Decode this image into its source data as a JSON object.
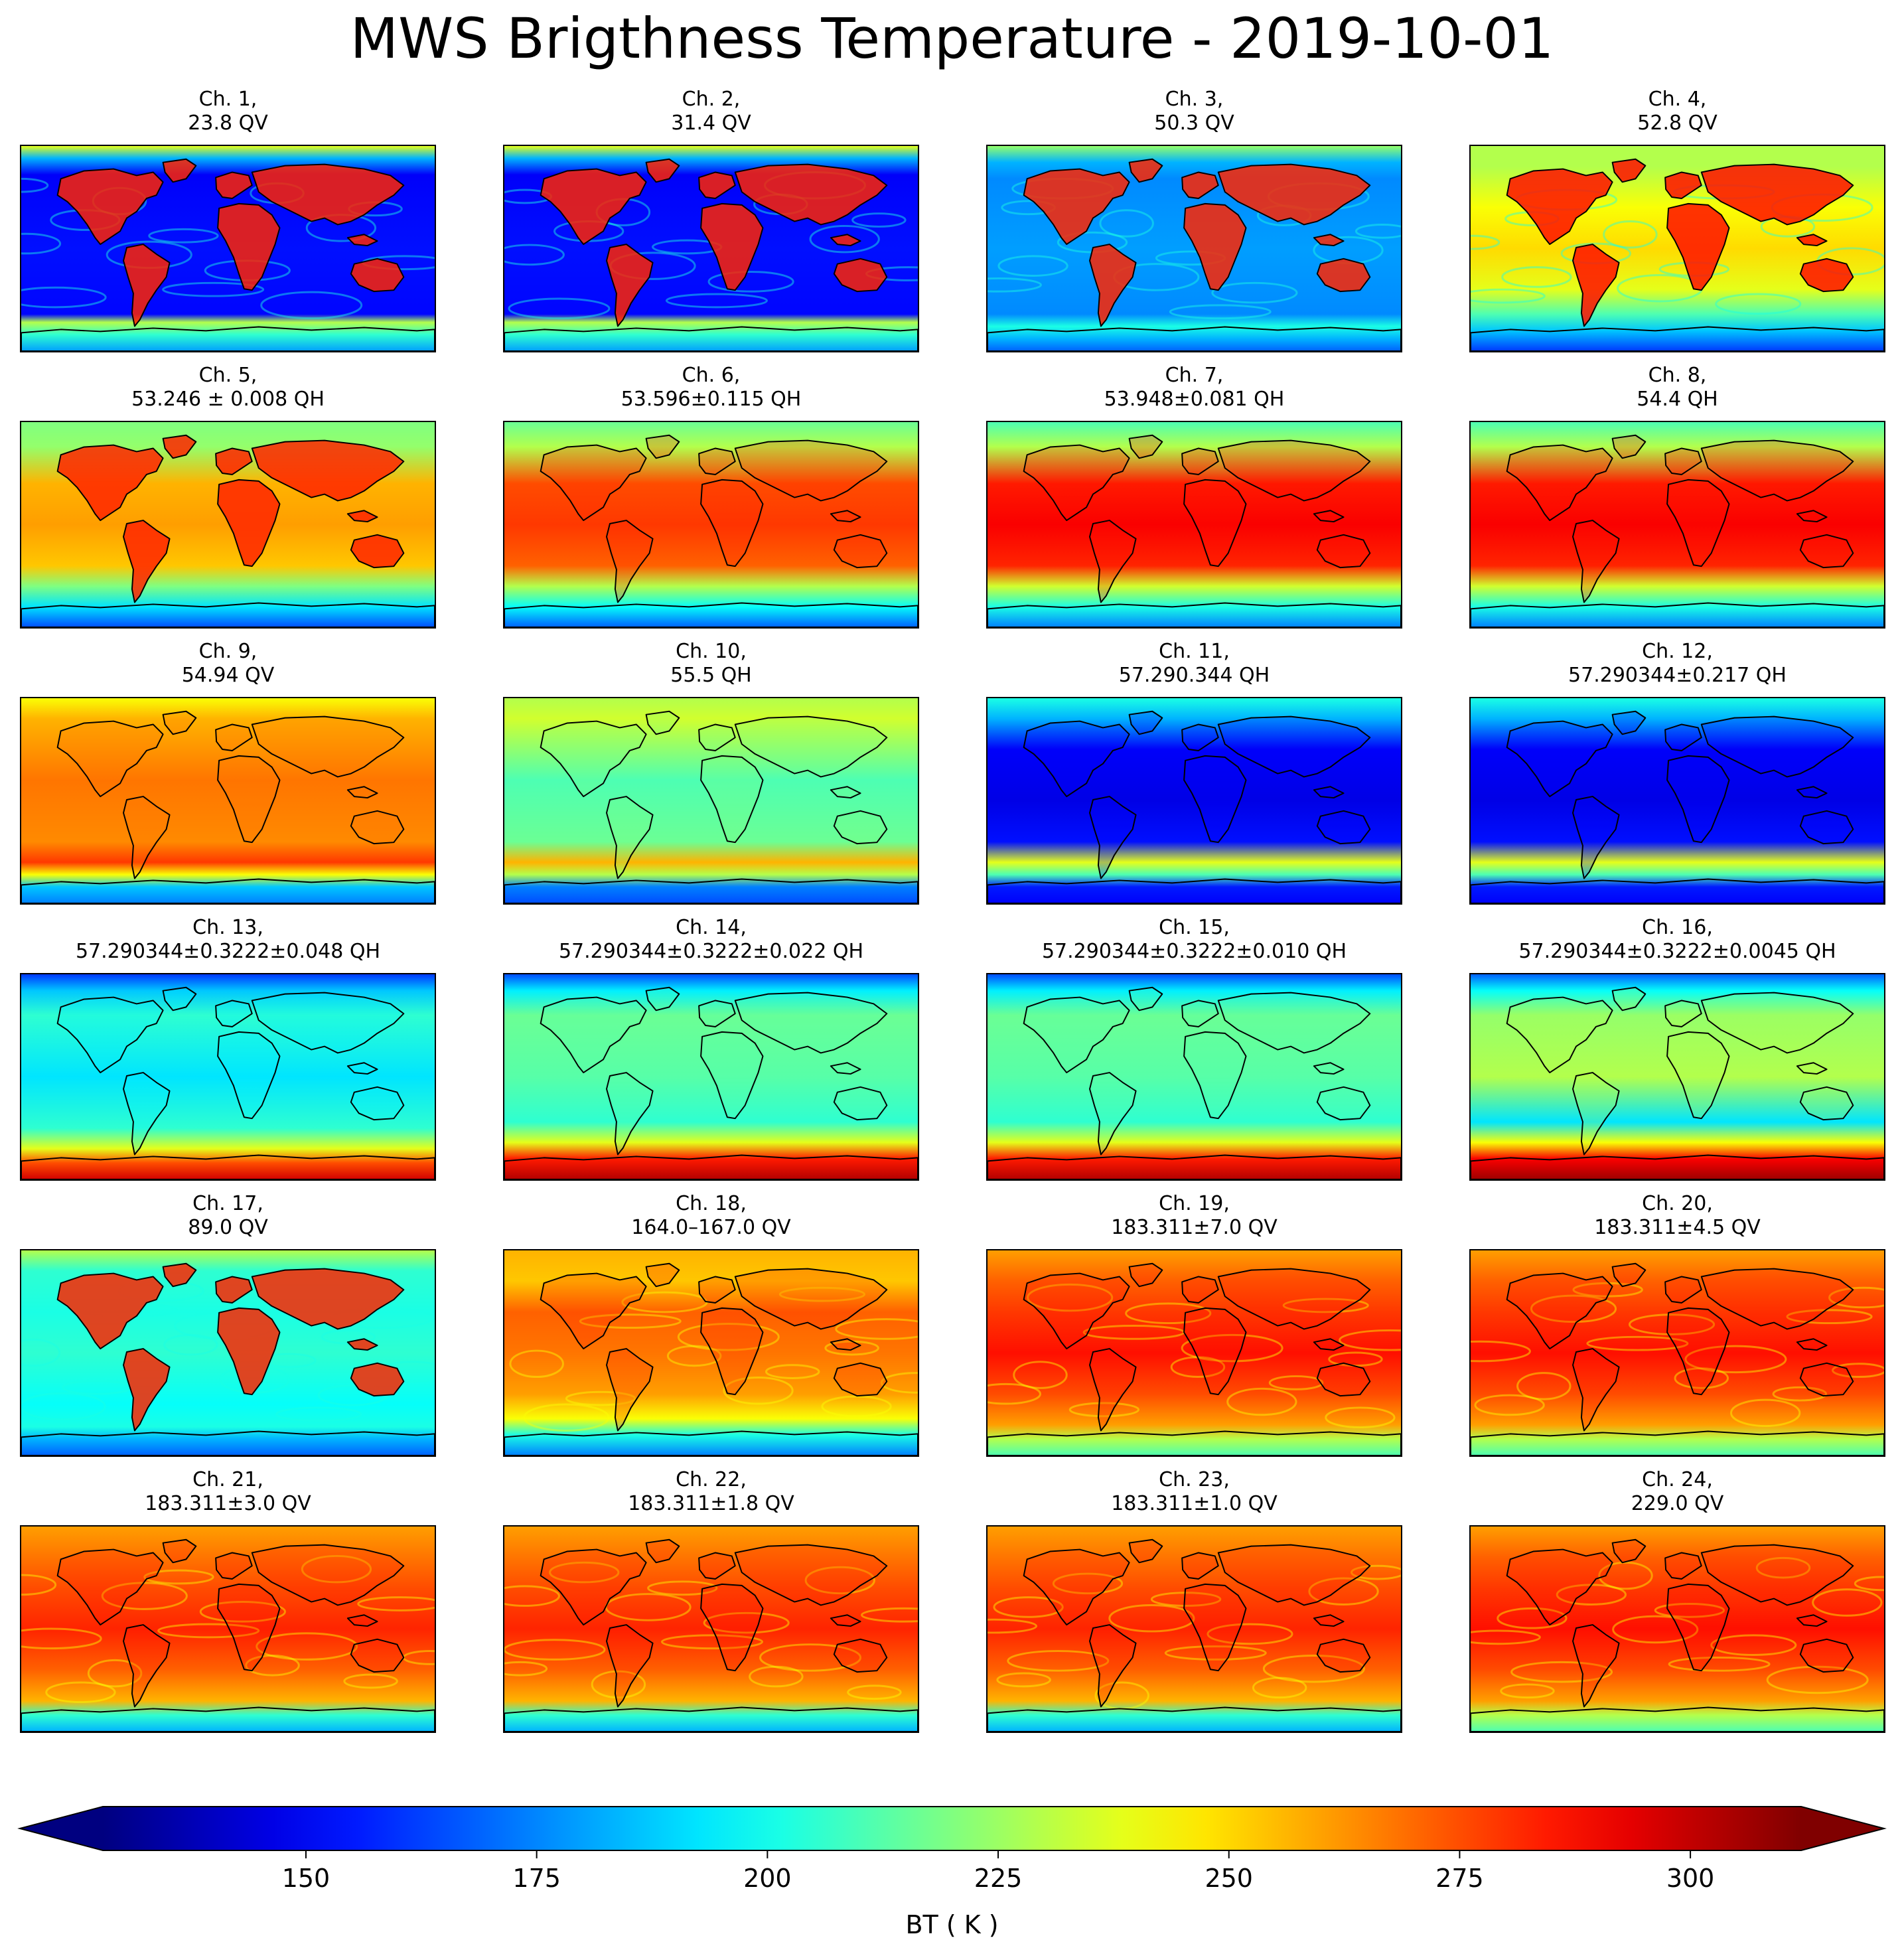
{
  "title": "MWS Brigthness Temperature - 2019-10-01",
  "panels": [
    {
      "line1": "Ch. 1,",
      "line2": "23.8 QV",
      "style": "window_low"
    },
    {
      "line1": "Ch. 2,",
      "line2": "31.4 QV",
      "style": "window_low"
    },
    {
      "line1": "Ch. 3,",
      "line2": "50.3 QV",
      "style": "window_mid"
    },
    {
      "line1": "Ch. 4,",
      "line2": "52.8 QV",
      "style": "window_high"
    },
    {
      "line1": "Ch. 5,",
      "line2": "53.246 ± 0.008 QH",
      "style": "temp_low"
    },
    {
      "line1": "Ch. 6,",
      "line2": "53.596±0.115 QH",
      "style": "temp_mid"
    },
    {
      "line1": "Ch. 7,",
      "line2": "53.948±0.081 QH",
      "style": "temp_warm"
    },
    {
      "line1": "Ch. 8,",
      "line2": "54.4 QH",
      "style": "temp_warm"
    },
    {
      "line1": "Ch. 9,",
      "line2": "54.94 QV",
      "style": "strat_warm"
    },
    {
      "line1": "Ch. 10,",
      "line2": "55.5 QH",
      "style": "strat_mid"
    },
    {
      "line1": "Ch. 11,",
      "line2": "57.290.344 QH",
      "style": "strat_cold"
    },
    {
      "line1": "Ch. 12,",
      "line2": "57.290344±0.217 QH",
      "style": "strat_cold"
    },
    {
      "line1": "Ch. 13,",
      "line2": "57.290344±0.3222±0.048 QH",
      "style": "upper_cool"
    },
    {
      "line1": "Ch. 14,",
      "line2": "57.290344±0.3222±0.022 QH",
      "style": "upper_mid"
    },
    {
      "line1": "Ch. 15,",
      "line2": "57.290344±0.3222±0.010 QH",
      "style": "upper_mid"
    },
    {
      "line1": "Ch. 16,",
      "line2": "57.290344±0.3222±0.0045 QH",
      "style": "upper_warm"
    },
    {
      "line1": "Ch. 17,",
      "line2": "89.0 QV",
      "style": "window_89"
    },
    {
      "line1": "Ch. 18,",
      "line2": "164.0–167.0 QV",
      "style": "vapor_mid"
    },
    {
      "line1": "Ch. 19,",
      "line2": "183.311±7.0 QV",
      "style": "vapor_warm"
    },
    {
      "line1": "Ch. 20,",
      "line2": "183.311±4.5 QV",
      "style": "vapor_warm"
    },
    {
      "line1": "Ch. 21,",
      "line2": "183.311±3.0 QV",
      "style": "vapor_swirl"
    },
    {
      "line1": "Ch. 22,",
      "line2": "183.311±1.8 QV",
      "style": "vapor_swirl"
    },
    {
      "line1": "Ch. 23,",
      "line2": "183.311±1.0 QV",
      "style": "vapor_swirl"
    },
    {
      "line1": "Ch. 24,",
      "line2": "229.0 QV",
      "style": "vapor_warm"
    }
  ],
  "colorbar": {
    "label": "BT ( K )",
    "ticks": [
      150,
      175,
      200,
      225,
      250,
      275,
      300
    ],
    "range": [
      128,
      312
    ],
    "extend": "both",
    "colormap": "jet"
  }
}
